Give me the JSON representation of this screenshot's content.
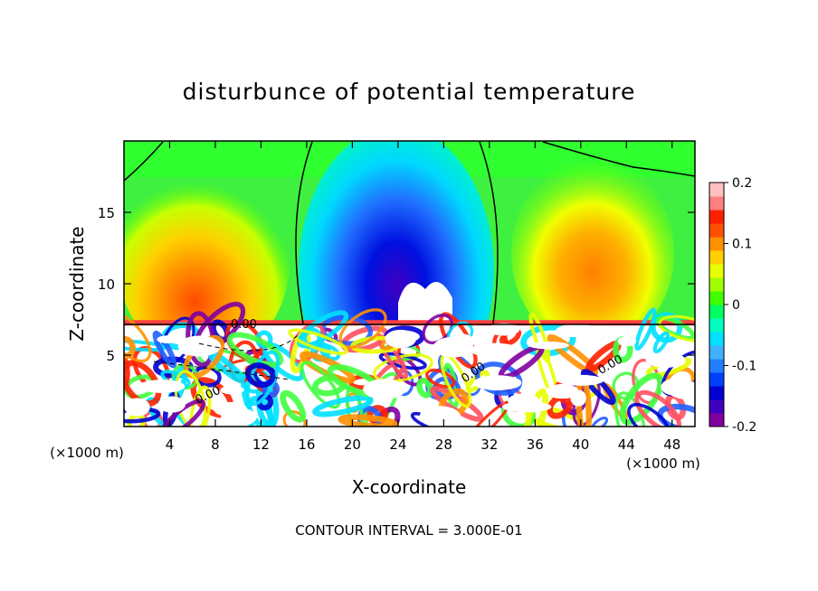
{
  "chart_data": {
    "type": "heatmap",
    "title": "disturbunce of potential temperature",
    "xlabel": "X-coordinate",
    "ylabel": "Z-coordinate",
    "x_unit": "(×1000 m)",
    "z_unit": "(×1000 m)",
    "xlim": [
      0,
      50
    ],
    "ylim": [
      0,
      20
    ],
    "x_ticks": [
      {
        "v": 4,
        "label": "4"
      },
      {
        "v": 8,
        "label": "8"
      },
      {
        "v": 12,
        "label": "12"
      },
      {
        "v": 16,
        "label": "16"
      },
      {
        "v": 20,
        "label": "20"
      },
      {
        "v": 24,
        "label": "24"
      },
      {
        "v": 28,
        "label": "28"
      },
      {
        "v": 32,
        "label": "32"
      },
      {
        "v": 36,
        "label": "36"
      },
      {
        "v": 40,
        "label": "40"
      },
      {
        "v": 44,
        "label": "44"
      },
      {
        "v": 48,
        "label": "48"
      }
    ],
    "y_ticks": [
      {
        "v": 5,
        "label": "5"
      },
      {
        "v": 10,
        "label": "10"
      },
      {
        "v": 15,
        "label": "15"
      }
    ],
    "colorbar": {
      "range": [
        -0.2,
        0.2
      ],
      "tick_labels": [
        {
          "v": 0.2,
          "label": "0.2"
        },
        {
          "v": 0.1,
          "label": "0.1"
        },
        {
          "v": 0,
          "label": "0"
        },
        {
          "v": -0.1,
          "label": "-0.1"
        },
        {
          "v": -0.2,
          "label": "-0.2"
        }
      ],
      "colors": [
        "#8000a0",
        "#4000c0",
        "#0000d0",
        "#0040ff",
        "#2080ff",
        "#40b0ff",
        "#00e0ff",
        "#00ffc0",
        "#00ff60",
        "#40ff00",
        "#a0ff00",
        "#e8ff00",
        "#ffd000",
        "#ff9000",
        "#ff5000",
        "#ff2000",
        "#ff8080",
        "#ffc0c0"
      ]
    },
    "contour_labels": [
      "0.00",
      "0.00",
      "0.00",
      "0.00"
    ],
    "footer": "CONTOUR INTERVAL = 3.000E-01"
  }
}
